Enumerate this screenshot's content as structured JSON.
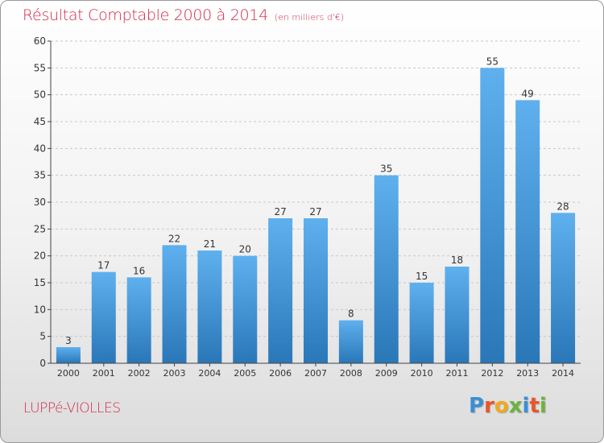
{
  "header": {
    "title": "Résultat Comptable 2000 à 2014",
    "unit": "(en milliers d'€)"
  },
  "footer": {
    "commune": "LUPPé-VIOLLES",
    "logo_text": "Proxiti",
    "logo_colors": [
      "#3a8fd6",
      "#e8552b",
      "#f2a81d",
      "#6cb33f",
      "#3a8fd6",
      "#e8552b",
      "#6cb33f"
    ]
  },
  "colors": {
    "title": "#d12a4a",
    "bar_top": "#5fb0ee",
    "bar_bottom": "#2a77b8",
    "axis": "#444444",
    "grid": "#c8c8c8"
  },
  "chart_data": {
    "type": "bar",
    "title": "Résultat Comptable 2000 à 2014",
    "subtitle": "(en milliers d'€)",
    "xlabel": "",
    "ylabel": "",
    "ylim": [
      0,
      60
    ],
    "yticks": [
      0,
      5,
      10,
      15,
      20,
      25,
      30,
      35,
      40,
      45,
      50,
      55,
      60
    ],
    "grid": true,
    "categories": [
      "2000",
      "2001",
      "2002",
      "2003",
      "2004",
      "2005",
      "2006",
      "2007",
      "2008",
      "2009",
      "2010",
      "2011",
      "2012",
      "2013",
      "2014"
    ],
    "values": [
      3,
      17,
      16,
      22,
      21,
      20,
      27,
      27,
      8,
      35,
      15,
      18,
      55,
      49,
      28
    ]
  }
}
